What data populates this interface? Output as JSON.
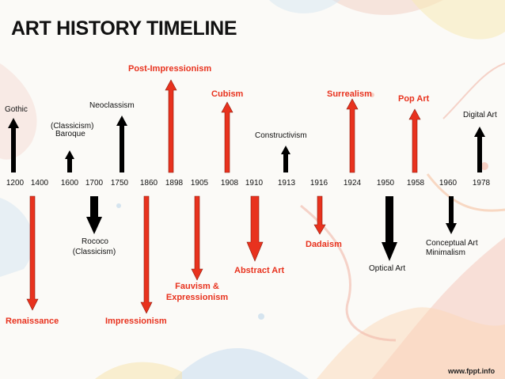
{
  "title": "ART HISTORY TIMELINE",
  "watermark": "www.fppt.info",
  "colors": {
    "red": "#e8321e",
    "black": "#000000"
  },
  "years": [
    "1200",
    "1400",
    "1600",
    "1700",
    "1750",
    "1860",
    "1898",
    "1905",
    "1908",
    "1910",
    "1913",
    "1916",
    "1924",
    "1950",
    "1958",
    "1960",
    "1978"
  ],
  "above": {
    "gothic": "Gothic",
    "baroque_line1": "(Classicism)",
    "baroque_line2": "Baroque",
    "neoclassism": "Neoclassism",
    "post_impressionism": "Post-Impressionism",
    "cubism": "Cubism",
    "constructivism": "Constructivism",
    "surrealism": "Surrealism",
    "pop_art": "Pop Art",
    "digital_art": "Digital Art"
  },
  "below": {
    "renaissance": "Renaissance",
    "rococo_line1": "Rococo",
    "rococo_line2": "(Classicism)",
    "impressionism": "Impressionism",
    "fauvism_line1": "Fauvism &",
    "fauvism_line2": "Expressionism",
    "abstract_art": "Abstract Art",
    "dadaism": "Dadaism",
    "optical_art": "Optical Art",
    "conceptual_line1": "Conceptual Art",
    "conceptual_line2": "Minimalism"
  }
}
